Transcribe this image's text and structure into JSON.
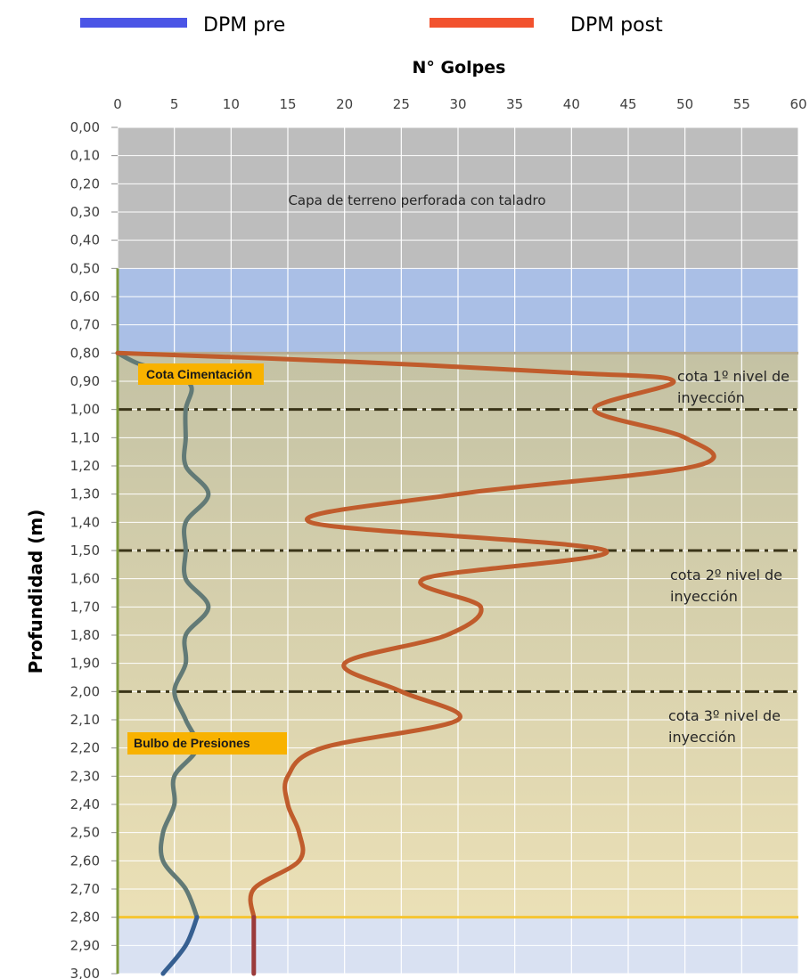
{
  "legend": [
    {
      "label": "DPM pre",
      "color": "#4b55e6"
    },
    {
      "label": "DPM post",
      "color": "#f2522e"
    }
  ],
  "colors": {
    "pre_line": "#627a76",
    "post_line": "#c05c2c",
    "gray_band": "#bdbdbd",
    "blue_band": "#aabfe6",
    "soil_band_top": "#c4c2a4",
    "soil_band_bottom": "#ebe0b6",
    "lower_band": "#d9e1f2",
    "axis_green": "#7e9a3c",
    "dash": "#3a3418",
    "yellow_line": "#f6c531",
    "tag_bg": "#f8b200",
    "pre_tail": "#365f91",
    "post_tail": "#9b3a3a"
  },
  "bands": {
    "gray_label": "Capa de terreno perforada con taladro"
  },
  "annotations": {
    "level1_line1": "cota 1º nivel de",
    "level1_line2": "inyección",
    "level2_line1": "cota 2º nivel de",
    "level2_line2": "inyección",
    "level3_line1": "cota 3º nivel de",
    "level3_line2": "inyección",
    "cota_cimentacion": "Cota Cimentación",
    "bulbo_presiones": "Bulbo de Presiones"
  },
  "chart_data": {
    "type": "line",
    "title": "",
    "xlabel": "N° Golpes",
    "ylabel": "Profundidad  (m)",
    "xlim": [
      0,
      60
    ],
    "ylim": [
      0,
      3.0
    ],
    "y_inverted": true,
    "x_ticks": [
      "0",
      "5",
      "10",
      "15",
      "20",
      "25",
      "30",
      "35",
      "40",
      "45",
      "50",
      "55",
      "60"
    ],
    "y_ticks": [
      "0,00",
      "0,10",
      "0,20",
      "0,30",
      "0,40",
      "0,50",
      "0,60",
      "0,70",
      "0,80",
      "0,90",
      "1,00",
      "1,10",
      "1,20",
      "1,30",
      "1,40",
      "1,50",
      "1,60",
      "1,70",
      "1,80",
      "1,90",
      "2,00",
      "2,10",
      "2,20",
      "2,30",
      "2,40",
      "2,50",
      "2,60",
      "2,70",
      "2,80",
      "2,90",
      "3,00"
    ],
    "bands": [
      {
        "from": 0.0,
        "to": 0.5,
        "name": "gray"
      },
      {
        "from": 0.5,
        "to": 0.8,
        "name": "blue"
      },
      {
        "from": 0.8,
        "to": 2.8,
        "name": "soil"
      },
      {
        "from": 2.8,
        "to": 3.0,
        "name": "lower"
      }
    ],
    "horizontal_lines": [
      {
        "y": 0.8,
        "style": "solid",
        "name": "cota-cimentacion"
      },
      {
        "y": 1.0,
        "style": "dashdot",
        "name": "level-1"
      },
      {
        "y": 1.5,
        "style": "dashdot",
        "name": "level-2"
      },
      {
        "y": 2.0,
        "style": "dashdot",
        "name": "level-3"
      },
      {
        "y": 2.8,
        "style": "solid",
        "name": "bulbo-presiones"
      }
    ],
    "series": [
      {
        "name": "DPM pre",
        "points": [
          [
            0,
            0.8
          ],
          [
            2,
            0.84
          ],
          [
            5,
            0.87
          ],
          [
            6.5,
            0.92
          ],
          [
            6,
            1.0
          ],
          [
            6,
            1.1
          ],
          [
            6,
            1.2
          ],
          [
            8,
            1.3
          ],
          [
            6,
            1.4
          ],
          [
            6,
            1.5
          ],
          [
            6,
            1.6
          ],
          [
            8,
            1.7
          ],
          [
            6,
            1.8
          ],
          [
            6,
            1.9
          ],
          [
            5,
            2.0
          ],
          [
            6,
            2.1
          ],
          [
            7,
            2.2
          ],
          [
            5,
            2.3
          ],
          [
            5,
            2.4
          ],
          [
            4,
            2.5
          ],
          [
            4,
            2.6
          ],
          [
            6,
            2.7
          ],
          [
            7,
            2.8
          ],
          [
            6,
            2.9
          ],
          [
            4,
            3.0
          ]
        ]
      },
      {
        "name": "DPM post",
        "points": [
          [
            0,
            0.8
          ],
          [
            20,
            0.83
          ],
          [
            40,
            0.87
          ],
          [
            49,
            0.9
          ],
          [
            42,
            1.0
          ],
          [
            50,
            1.1
          ],
          [
            51,
            1.2
          ],
          [
            30,
            1.3
          ],
          [
            17,
            1.4
          ],
          [
            43,
            1.5
          ],
          [
            27,
            1.6
          ],
          [
            32,
            1.7
          ],
          [
            29,
            1.8
          ],
          [
            20,
            1.9
          ],
          [
            25,
            2.0
          ],
          [
            30,
            2.1
          ],
          [
            18,
            2.2
          ],
          [
            15,
            2.3
          ],
          [
            15,
            2.4
          ],
          [
            16,
            2.5
          ],
          [
            16,
            2.6
          ],
          [
            12,
            2.7
          ],
          [
            12,
            2.8
          ],
          [
            12,
            2.9
          ],
          [
            12,
            3.0
          ]
        ]
      }
    ]
  }
}
